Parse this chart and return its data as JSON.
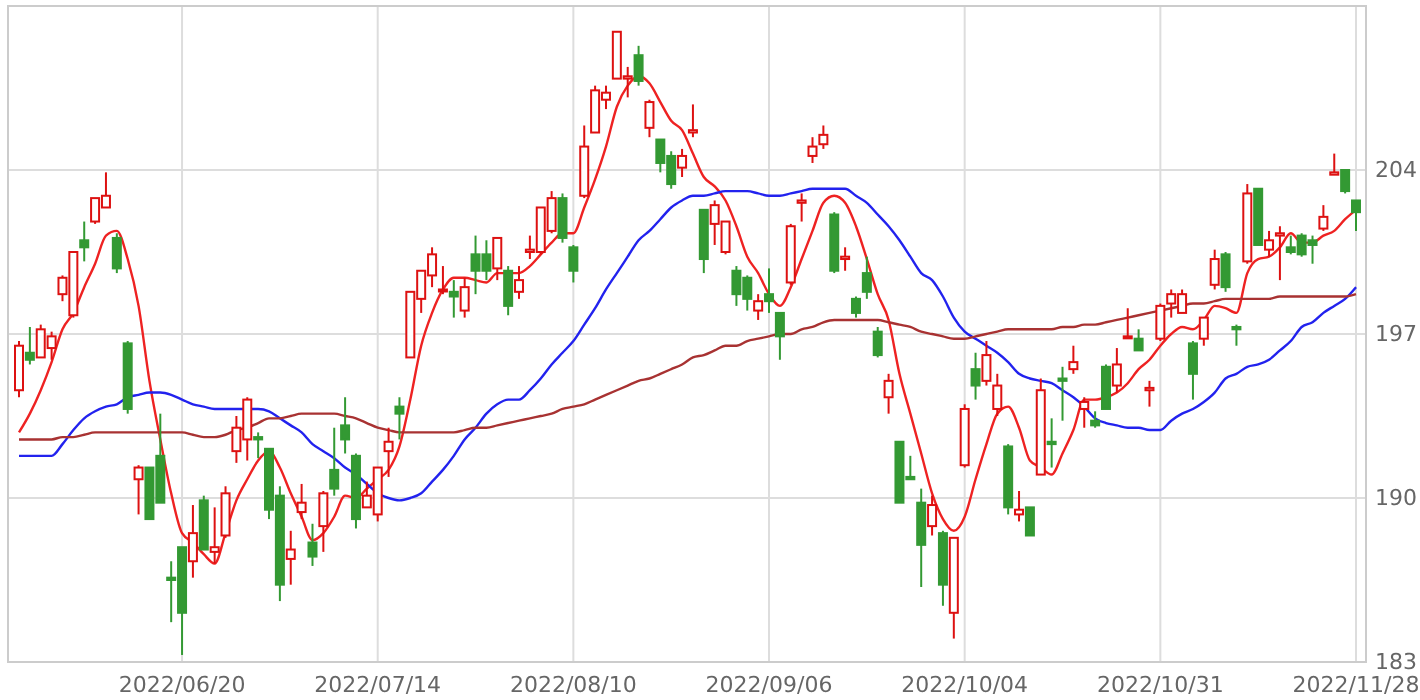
{
  "chart_data": {
    "type": "candlestick",
    "categories": [
      null,
      null,
      null,
      null,
      null,
      null,
      null,
      null,
      null,
      null,
      null,
      null,
      null,
      null,
      null,
      "2022/06/20",
      null,
      null,
      null,
      null,
      null,
      null,
      null,
      null,
      null,
      null,
      null,
      null,
      null,
      null,
      null,
      null,
      null,
      "2022/07/14",
      null,
      null,
      null,
      null,
      null,
      null,
      null,
      null,
      null,
      null,
      null,
      null,
      null,
      null,
      null,
      null,
      null,
      "2022/08/10",
      null,
      null,
      null,
      null,
      null,
      null,
      null,
      null,
      null,
      null,
      null,
      null,
      null,
      null,
      null,
      null,
      null,
      "2022/09/06",
      null,
      null,
      null,
      null,
      null,
      null,
      null,
      null,
      null,
      null,
      null,
      null,
      null,
      null,
      null,
      null,
      null,
      "2022/10/04",
      null,
      null,
      null,
      null,
      null,
      null,
      null,
      null,
      null,
      null,
      null,
      null,
      null,
      null,
      null,
      null,
      null,
      "2022/10/31",
      null,
      null,
      null,
      null,
      null,
      null,
      null,
      null,
      null,
      null,
      null,
      null,
      null,
      null,
      null,
      null,
      null,
      "2022/11/28"
    ],
    "ohlc": [
      [
        194.6,
        196.7,
        194.3,
        196.5
      ],
      [
        196.2,
        197.3,
        195.7,
        195.9
      ],
      [
        196.0,
        197.4,
        196.0,
        197.2
      ],
      [
        196.4,
        197.1,
        195.9,
        196.9
      ],
      [
        198.7,
        199.5,
        198.4,
        199.4
      ],
      [
        197.8,
        200.5,
        197.7,
        200.5
      ],
      [
        201.0,
        201.8,
        200.1,
        200.7
      ],
      [
        201.8,
        202.8,
        201.7,
        202.8
      ],
      [
        202.4,
        203.9,
        202.4,
        202.9
      ],
      [
        201.1,
        201.3,
        199.6,
        199.8
      ],
      [
        196.6,
        196.7,
        193.6,
        193.8
      ],
      [
        190.8,
        191.4,
        189.3,
        191.3
      ],
      [
        191.3,
        191.3,
        189.1,
        189.1
      ],
      [
        191.8,
        193.6,
        189.8,
        189.8
      ],
      [
        186.6,
        187.3,
        184.7,
        186.5
      ],
      [
        187.9,
        187.9,
        183.3,
        185.1
      ],
      [
        187.3,
        189.7,
        186.6,
        188.5
      ],
      [
        189.9,
        190.1,
        187.8,
        187.8
      ],
      [
        187.7,
        189.6,
        187.2,
        187.9
      ],
      [
        188.4,
        190.5,
        188.3,
        190.2
      ],
      [
        192.0,
        193.5,
        191.5,
        193.0
      ],
      [
        192.5,
        194.3,
        191.6,
        194.2
      ],
      [
        192.6,
        192.8,
        191.7,
        192.5
      ],
      [
        192.1,
        192.1,
        189.1,
        189.5
      ],
      [
        190.1,
        190.5,
        185.6,
        186.3
      ],
      [
        187.4,
        188.6,
        186.3,
        187.8
      ],
      [
        189.4,
        190.6,
        189.1,
        189.8
      ],
      [
        188.1,
        188.9,
        187.1,
        187.5
      ],
      [
        188.8,
        190.3,
        187.7,
        190.2
      ],
      [
        191.2,
        193.0,
        190.1,
        190.4
      ],
      [
        193.1,
        194.3,
        191.9,
        192.5
      ],
      [
        191.8,
        191.9,
        188.7,
        189.1
      ],
      [
        189.6,
        190.7,
        189.6,
        190.1
      ],
      [
        189.3,
        191.3,
        189.0,
        191.3
      ],
      [
        192.0,
        193.0,
        190.9,
        192.4
      ],
      [
        193.9,
        194.3,
        192.5,
        193.6
      ],
      [
        196.0,
        198.8,
        196.0,
        198.8
      ],
      [
        198.5,
        199.7,
        197.9,
        199.7
      ],
      [
        199.5,
        200.7,
        199.0,
        200.4
      ],
      [
        198.9,
        199.9,
        198.7,
        198.9
      ],
      [
        198.8,
        199.3,
        197.7,
        198.6
      ],
      [
        198.0,
        199.4,
        197.7,
        199.0
      ],
      [
        200.4,
        201.2,
        198.7,
        199.7
      ],
      [
        200.4,
        201.0,
        199.3,
        199.7
      ],
      [
        199.8,
        201.1,
        199.3,
        201.1
      ],
      [
        199.7,
        199.9,
        197.8,
        198.2
      ],
      [
        198.8,
        199.9,
        198.5,
        199.3
      ],
      [
        200.5,
        201.2,
        200.2,
        200.6
      ],
      [
        200.5,
        202.4,
        200.4,
        202.4
      ],
      [
        201.4,
        203.1,
        201.3,
        202.8
      ],
      [
        202.8,
        203.0,
        200.9,
        201.1
      ],
      [
        200.7,
        200.8,
        199.2,
        199.7
      ],
      [
        202.9,
        205.9,
        202.8,
        205.0
      ],
      [
        205.6,
        207.6,
        205.6,
        207.4
      ],
      [
        207.0,
        207.6,
        206.6,
        207.3
      ],
      [
        207.9,
        209.9,
        207.9,
        209.9
      ],
      [
        207.9,
        208.4,
        207.1,
        208.0
      ],
      [
        208.9,
        209.3,
        207.6,
        207.8
      ],
      [
        205.8,
        207.0,
        205.4,
        206.9
      ],
      [
        205.3,
        205.3,
        203.9,
        204.3
      ],
      [
        204.6,
        204.8,
        203.2,
        203.4
      ],
      [
        204.1,
        204.9,
        203.7,
        204.6
      ],
      [
        205.6,
        206.8,
        205.4,
        205.7
      ],
      [
        202.3,
        202.3,
        199.6,
        200.2
      ],
      [
        201.7,
        202.7,
        200.8,
        202.5
      ],
      [
        200.5,
        201.8,
        200.4,
        201.8
      ],
      [
        199.7,
        199.9,
        198.2,
        198.7
      ],
      [
        199.4,
        199.5,
        198.0,
        198.5
      ],
      [
        198.0,
        198.7,
        197.6,
        198.4
      ],
      [
        198.7,
        199.8,
        197.9,
        198.4
      ],
      [
        197.9,
        197.9,
        195.9,
        196.9
      ],
      [
        199.2,
        201.7,
        199.1,
        201.6
      ],
      [
        202.6,
        203.0,
        201.8,
        202.7
      ],
      [
        204.6,
        205.4,
        204.3,
        205.0
      ],
      [
        205.1,
        205.9,
        204.9,
        205.5
      ],
      [
        202.1,
        202.2,
        199.6,
        199.7
      ],
      [
        200.2,
        200.7,
        199.7,
        200.3
      ],
      [
        198.5,
        198.6,
        197.7,
        197.9
      ],
      [
        199.6,
        200.3,
        198.5,
        198.8
      ],
      [
        197.1,
        197.3,
        196.0,
        196.1
      ],
      [
        194.3,
        195.3,
        193.6,
        195.0
      ],
      [
        192.4,
        192.4,
        189.8,
        189.8
      ],
      [
        190.9,
        191.8,
        190.8,
        190.8
      ],
      [
        189.8,
        190.4,
        186.2,
        188.0
      ],
      [
        188.8,
        190.1,
        188.4,
        189.7
      ],
      [
        188.5,
        188.6,
        185.4,
        186.3
      ],
      [
        185.1,
        188.3,
        184.0,
        188.3
      ],
      [
        191.4,
        194.0,
        191.3,
        193.8
      ],
      [
        195.5,
        196.2,
        194.2,
        194.8
      ],
      [
        195.0,
        196.7,
        194.8,
        196.1
      ],
      [
        193.8,
        195.3,
        193.5,
        194.8
      ],
      [
        192.2,
        192.3,
        189.3,
        189.6
      ],
      [
        189.3,
        190.3,
        189.0,
        189.5
      ],
      [
        189.6,
        189.6,
        188.4,
        188.4
      ],
      [
        191.0,
        195.1,
        191.0,
        194.6
      ],
      [
        192.4,
        193.4,
        191.3,
        192.3
      ],
      [
        195.1,
        195.6,
        193.3,
        195.0
      ],
      [
        195.5,
        196.5,
        195.3,
        195.8
      ],
      [
        193.8,
        194.3,
        193.0,
        194.1
      ],
      [
        193.3,
        193.7,
        193.0,
        193.1
      ],
      [
        195.6,
        195.7,
        193.8,
        193.8
      ],
      [
        194.8,
        196.4,
        194.5,
        195.7
      ],
      [
        196.9,
        198.1,
        196.8,
        196.9
      ],
      [
        196.8,
        197.2,
        196.3,
        196.3
      ],
      [
        194.6,
        195.0,
        193.9,
        194.7
      ],
      [
        196.8,
        198.3,
        196.7,
        198.2
      ],
      [
        198.3,
        198.9,
        197.7,
        198.7
      ],
      [
        197.9,
        198.9,
        197.9,
        198.7
      ],
      [
        196.6,
        196.7,
        194.2,
        195.3
      ],
      [
        196.8,
        197.7,
        196.5,
        197.7
      ],
      [
        199.1,
        200.6,
        198.9,
        200.2
      ],
      [
        200.4,
        200.5,
        198.8,
        199.0
      ],
      [
        197.3,
        197.4,
        196.5,
        197.2
      ],
      [
        200.1,
        203.4,
        200.0,
        203.0
      ],
      [
        203.2,
        203.2,
        200.8,
        200.8
      ],
      [
        200.6,
        201.4,
        200.3,
        201.0
      ],
      [
        201.2,
        201.6,
        199.3,
        201.3
      ],
      [
        200.7,
        201.2,
        200.4,
        200.5
      ],
      [
        201.2,
        201.3,
        200.3,
        200.4
      ],
      [
        201.0,
        201.2,
        200.0,
        200.8
      ],
      [
        201.5,
        202.5,
        201.4,
        202.0
      ],
      [
        203.8,
        204.7,
        203.8,
        203.9
      ],
      [
        204.0,
        204.0,
        203.0,
        203.1
      ],
      [
        202.7,
        202.7,
        201.4,
        202.2
      ]
    ],
    "series": [
      {
        "type": "line",
        "color": "#ee2222",
        "values": [
          192.8,
          193.6,
          194.6,
          195.8,
          197.2,
          197.9,
          199.0,
          200.0,
          201.2,
          201.4,
          200.2,
          198.2,
          195.0,
          192.5,
          190.2,
          188.5,
          188.1,
          187.6,
          187.2,
          188.5,
          189.9,
          190.8,
          191.6,
          192.0,
          191.3,
          190.2,
          189.2,
          188.2,
          188.5,
          189.2,
          190.1,
          190.0,
          190.4,
          190.8,
          191.2,
          192.2,
          194.2,
          196.5,
          197.9,
          198.9,
          199.4,
          199.4,
          199.3,
          199.2,
          199.6,
          199.6,
          199.6,
          199.9,
          200.4,
          200.9,
          201.3,
          201.3,
          202.4,
          203.6,
          205.0,
          206.7,
          207.6,
          208.0,
          207.7,
          206.9,
          206.1,
          205.7,
          204.7,
          203.7,
          203.3,
          202.7,
          201.6,
          200.3,
          199.6,
          198.7,
          198.2,
          199.0,
          200.2,
          201.4,
          202.6,
          202.9,
          202.6,
          201.6,
          200.2,
          198.7,
          197.6,
          195.3,
          193.6,
          191.9,
          190.2,
          189.1,
          188.6,
          189.2,
          190.8,
          192.3,
          193.6,
          193.9,
          193.0,
          191.6,
          191.3,
          191.0,
          191.9,
          192.9,
          194.2,
          194.2,
          194.3,
          194.5,
          194.9,
          195.5,
          195.9,
          196.5,
          197.0,
          197.3,
          197.2,
          197.6,
          198.2,
          198.1,
          197.9,
          199.6,
          200.2,
          200.3,
          200.7,
          201.3,
          200.9,
          200.9,
          201.2,
          201.4,
          201.9,
          202.3
        ]
      },
      {
        "type": "line",
        "color": "#2222ee",
        "values": [
          191.8,
          191.8,
          191.8,
          191.8,
          192.3,
          192.9,
          193.4,
          193.7,
          193.9,
          194.0,
          194.3,
          194.4,
          194.5,
          194.5,
          194.4,
          194.2,
          194.0,
          193.9,
          193.8,
          193.8,
          193.8,
          193.8,
          193.8,
          193.7,
          193.4,
          193.1,
          192.8,
          192.3,
          192.0,
          191.7,
          191.3,
          191.0,
          190.6,
          190.2,
          190.0,
          189.9,
          190.0,
          190.2,
          190.7,
          191.2,
          191.8,
          192.5,
          193.0,
          193.6,
          194.0,
          194.2,
          194.2,
          194.6,
          195.1,
          195.7,
          196.2,
          196.7,
          197.4,
          198.1,
          198.9,
          199.6,
          200.3,
          201.0,
          201.4,
          201.9,
          202.4,
          202.7,
          202.9,
          202.9,
          203.0,
          203.1,
          203.1,
          203.1,
          203.0,
          202.9,
          202.9,
          203.0,
          203.1,
          203.2,
          203.2,
          203.2,
          203.2,
          202.9,
          202.6,
          202.1,
          201.6,
          201.0,
          200.3,
          199.6,
          199.3,
          198.6,
          197.7,
          197.1,
          196.8,
          196.5,
          196.2,
          195.8,
          195.3,
          195.1,
          195.0,
          194.9,
          194.6,
          194.3,
          193.9,
          193.4,
          193.2,
          193.1,
          193.0,
          193.0,
          192.9,
          192.9,
          193.3,
          193.6,
          193.8,
          194.1,
          194.5,
          195.1,
          195.3,
          195.6,
          195.7,
          195.9,
          196.3,
          196.7,
          197.3,
          197.5,
          197.9,
          198.2,
          198.5,
          199.0
        ]
      },
      {
        "type": "line",
        "color": "#a83232",
        "values": [
          192.5,
          192.5,
          192.5,
          192.5,
          192.6,
          192.6,
          192.7,
          192.8,
          192.8,
          192.8,
          192.8,
          192.8,
          192.8,
          192.8,
          192.8,
          192.8,
          192.7,
          192.6,
          192.6,
          192.7,
          192.9,
          193.0,
          193.2,
          193.4,
          193.4,
          193.5,
          193.6,
          193.6,
          193.6,
          193.6,
          193.5,
          193.4,
          193.2,
          193.0,
          192.9,
          192.8,
          192.8,
          192.8,
          192.8,
          192.8,
          192.8,
          192.9,
          193.0,
          193.0,
          193.1,
          193.2,
          193.3,
          193.4,
          193.5,
          193.6,
          193.8,
          193.9,
          194.0,
          194.2,
          194.4,
          194.6,
          194.8,
          195.0,
          195.1,
          195.3,
          195.5,
          195.7,
          196.0,
          196.1,
          196.3,
          196.5,
          196.5,
          196.7,
          196.8,
          196.9,
          197.0,
          197.0,
          197.2,
          197.3,
          197.5,
          197.6,
          197.6,
          197.6,
          197.6,
          197.6,
          197.5,
          197.4,
          197.3,
          197.1,
          197.0,
          196.9,
          196.8,
          196.8,
          196.9,
          197.0,
          197.1,
          197.2,
          197.2,
          197.2,
          197.2,
          197.2,
          197.3,
          197.3,
          197.4,
          197.4,
          197.5,
          197.6,
          197.7,
          197.8,
          197.9,
          198.0,
          198.1,
          198.2,
          198.3,
          198.3,
          198.4,
          198.5,
          198.5,
          198.5,
          198.5,
          198.5,
          198.6,
          198.6,
          198.6,
          198.6,
          198.6,
          198.6,
          198.6,
          198.7
        ]
      }
    ],
    "ylim": [
      183,
      211
    ],
    "yticks": [
      183,
      190,
      197,
      204
    ],
    "grid": true
  }
}
